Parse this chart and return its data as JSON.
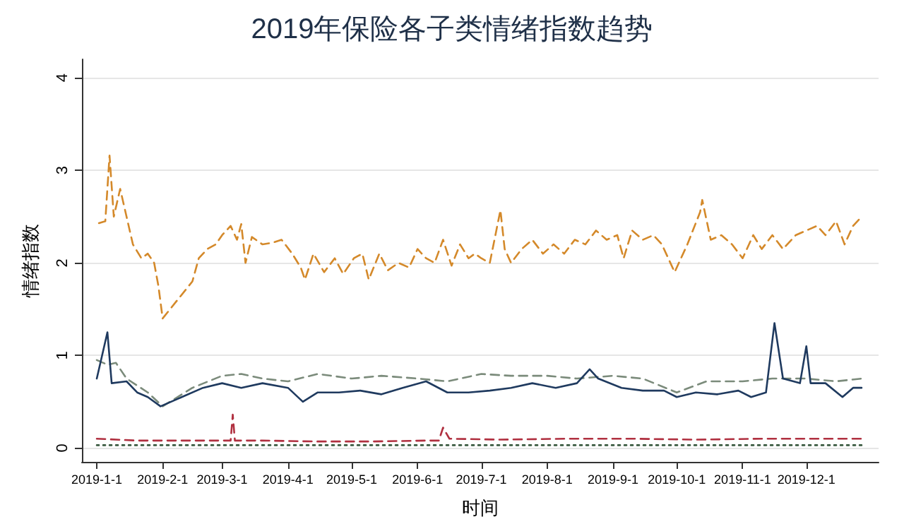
{
  "chart_data": {
    "type": "line",
    "title": "2019年保险各子类情绪指数趋势",
    "xlabel": "时间",
    "ylabel": "情绪指数",
    "xlim": [
      "2018-12-25",
      "2020-01-04"
    ],
    "xticks": [
      {
        "value": "2019-01-01",
        "label": "2019-1-1"
      },
      {
        "value": "2019-02-01",
        "label": "2019-2-1"
      },
      {
        "value": "2019-03-01",
        "label": "2019-3-1"
      },
      {
        "value": "2019-04-01",
        "label": "2019-4-1"
      },
      {
        "value": "2019-05-01",
        "label": "2019-5-1"
      },
      {
        "value": "2019-06-01",
        "label": "2019-6-1"
      },
      {
        "value": "2019-07-01",
        "label": "2019-7-1"
      },
      {
        "value": "2019-08-01",
        "label": "2019-8-1"
      },
      {
        "value": "2019-09-01",
        "label": "2019-9-1"
      },
      {
        "value": "2019-10-01",
        "label": "2019-10-1"
      },
      {
        "value": "2019-11-01",
        "label": "2019-11-1"
      },
      {
        "value": "2019-12-01",
        "label": "2019-12-1"
      }
    ],
    "ylim": [
      -0.15,
      4.2
    ],
    "yticks": [
      0,
      1,
      2,
      3,
      4
    ],
    "grid": "y",
    "marker": "none",
    "series": [
      {
        "color": "#d4892a",
        "line_style": "dashed",
        "x": [
          "2019-01-02",
          "2019-01-05",
          "2019-01-07",
          "2019-01-09",
          "2019-01-12",
          "2019-01-15",
          "2019-01-18",
          "2019-01-22",
          "2019-01-25",
          "2019-01-28",
          "2019-01-30",
          "2019-02-01",
          "2019-02-08",
          "2019-02-15",
          "2019-02-18",
          "2019-02-22",
          "2019-02-26",
          "2019-03-01",
          "2019-03-05",
          "2019-03-08",
          "2019-03-10",
          "2019-03-12",
          "2019-03-15",
          "2019-03-20",
          "2019-03-25",
          "2019-03-29",
          "2019-04-03",
          "2019-04-07",
          "2019-04-09",
          "2019-04-13",
          "2019-04-18",
          "2019-04-23",
          "2019-04-27",
          "2019-05-02",
          "2019-05-06",
          "2019-05-09",
          "2019-05-14",
          "2019-05-18",
          "2019-05-23",
          "2019-05-28",
          "2019-06-01",
          "2019-06-05",
          "2019-06-09",
          "2019-06-13",
          "2019-06-17",
          "2019-06-21",
          "2019-06-25",
          "2019-06-28",
          "2019-07-01",
          "2019-07-05",
          "2019-07-10",
          "2019-07-12",
          "2019-07-15",
          "2019-07-20",
          "2019-07-25",
          "2019-07-30",
          "2019-08-04",
          "2019-08-09",
          "2019-08-14",
          "2019-08-19",
          "2019-08-24",
          "2019-08-29",
          "2019-09-03",
          "2019-09-06",
          "2019-09-10",
          "2019-09-15",
          "2019-09-20",
          "2019-09-24",
          "2019-09-30",
          "2019-10-06",
          "2019-10-12",
          "2019-10-13",
          "2019-10-17",
          "2019-10-22",
          "2019-10-27",
          "2019-11-01",
          "2019-11-06",
          "2019-11-10",
          "2019-11-15",
          "2019-11-20",
          "2019-11-26",
          "2019-12-01",
          "2019-12-06",
          "2019-12-10",
          "2019-12-15",
          "2019-12-19",
          "2019-12-23",
          "2019-12-27"
        ],
        "values": [
          2.43,
          2.45,
          3.16,
          2.5,
          2.8,
          2.5,
          2.2,
          2.05,
          2.1,
          2.0,
          1.75,
          1.4,
          1.6,
          1.8,
          2.05,
          2.15,
          2.2,
          2.3,
          2.4,
          2.25,
          2.42,
          2.0,
          2.28,
          2.2,
          2.22,
          2.25,
          2.1,
          1.95,
          1.82,
          2.1,
          1.9,
          2.05,
          1.88,
          2.05,
          2.1,
          1.82,
          2.1,
          1.92,
          2.0,
          1.95,
          2.15,
          2.05,
          2.0,
          2.25,
          1.97,
          2.2,
          2.05,
          2.1,
          2.05,
          2.0,
          2.57,
          2.15,
          2.0,
          2.15,
          2.25,
          2.1,
          2.2,
          2.1,
          2.25,
          2.2,
          2.35,
          2.25,
          2.3,
          2.05,
          2.35,
          2.25,
          2.3,
          2.2,
          1.9,
          2.2,
          2.55,
          2.68,
          2.25,
          2.3,
          2.2,
          2.05,
          2.3,
          2.15,
          2.3,
          2.15,
          2.3,
          2.35,
          2.4,
          2.3,
          2.45,
          2.2,
          2.4,
          2.5
        ]
      },
      {
        "color": "#7b8b7b",
        "line_style": "dashed",
        "x": [
          "2019-01-01",
          "2019-01-06",
          "2019-01-10",
          "2019-01-15",
          "2019-01-25",
          "2019-02-01",
          "2019-02-15",
          "2019-03-01",
          "2019-03-10",
          "2019-03-20",
          "2019-04-01",
          "2019-04-15",
          "2019-05-01",
          "2019-05-15",
          "2019-06-01",
          "2019-06-15",
          "2019-07-01",
          "2019-07-15",
          "2019-08-01",
          "2019-08-15",
          "2019-09-01",
          "2019-09-15",
          "2019-10-01",
          "2019-10-15",
          "2019-11-01",
          "2019-11-15",
          "2019-12-01",
          "2019-12-15",
          "2019-12-27"
        ],
        "values": [
          0.95,
          0.9,
          0.92,
          0.75,
          0.6,
          0.45,
          0.65,
          0.78,
          0.8,
          0.75,
          0.72,
          0.8,
          0.75,
          0.78,
          0.75,
          0.72,
          0.8,
          0.78,
          0.78,
          0.75,
          0.78,
          0.75,
          0.6,
          0.72,
          0.72,
          0.75,
          0.75,
          0.72,
          0.75
        ]
      },
      {
        "color": "#1f3a5f",
        "line_style": "solid",
        "x": [
          "2019-01-01",
          "2019-01-06",
          "2019-01-08",
          "2019-01-15",
          "2019-01-20",
          "2019-01-25",
          "2019-01-31",
          "2019-02-10",
          "2019-02-20",
          "2019-03-01",
          "2019-03-10",
          "2019-03-20",
          "2019-04-01",
          "2019-04-08",
          "2019-04-15",
          "2019-04-25",
          "2019-05-05",
          "2019-05-15",
          "2019-05-25",
          "2019-06-05",
          "2019-06-15",
          "2019-06-25",
          "2019-07-05",
          "2019-07-15",
          "2019-07-25",
          "2019-08-05",
          "2019-08-15",
          "2019-08-21",
          "2019-08-25",
          "2019-09-05",
          "2019-09-15",
          "2019-09-25",
          "2019-10-01",
          "2019-10-10",
          "2019-10-20",
          "2019-10-30",
          "2019-11-05",
          "2019-11-12",
          "2019-11-16",
          "2019-11-20",
          "2019-11-28",
          "2019-12-01",
          "2019-12-03",
          "2019-12-10",
          "2019-12-18",
          "2019-12-23",
          "2019-12-27"
        ],
        "values": [
          0.75,
          1.25,
          0.7,
          0.72,
          0.6,
          0.55,
          0.45,
          0.55,
          0.65,
          0.7,
          0.65,
          0.7,
          0.65,
          0.5,
          0.6,
          0.6,
          0.62,
          0.58,
          0.65,
          0.72,
          0.6,
          0.6,
          0.62,
          0.65,
          0.7,
          0.65,
          0.7,
          0.85,
          0.75,
          0.65,
          0.62,
          0.62,
          0.55,
          0.6,
          0.58,
          0.62,
          0.55,
          0.6,
          1.35,
          0.75,
          0.7,
          1.1,
          0.7,
          0.7,
          0.55,
          0.65,
          0.65
        ]
      },
      {
        "color": "#b03040",
        "line_style": "dashed",
        "x": [
          "2019-01-01",
          "2019-01-20",
          "2019-02-10",
          "2019-03-01",
          "2019-03-05",
          "2019-03-06",
          "2019-03-07",
          "2019-03-20",
          "2019-04-15",
          "2019-05-10",
          "2019-06-05",
          "2019-06-11",
          "2019-06-13",
          "2019-06-16",
          "2019-07-10",
          "2019-08-10",
          "2019-09-10",
          "2019-10-10",
          "2019-11-10",
          "2019-12-10",
          "2019-12-27"
        ],
        "values": [
          0.1,
          0.08,
          0.08,
          0.08,
          0.08,
          0.36,
          0.08,
          0.08,
          0.07,
          0.07,
          0.08,
          0.08,
          0.22,
          0.1,
          0.09,
          0.1,
          0.1,
          0.09,
          0.1,
          0.1,
          0.1
        ]
      },
      {
        "color": "#3a5a40",
        "line_style": "dotted",
        "x": [
          "2019-01-01",
          "2019-12-27"
        ],
        "values": [
          0.03,
          0.03
        ]
      }
    ]
  }
}
